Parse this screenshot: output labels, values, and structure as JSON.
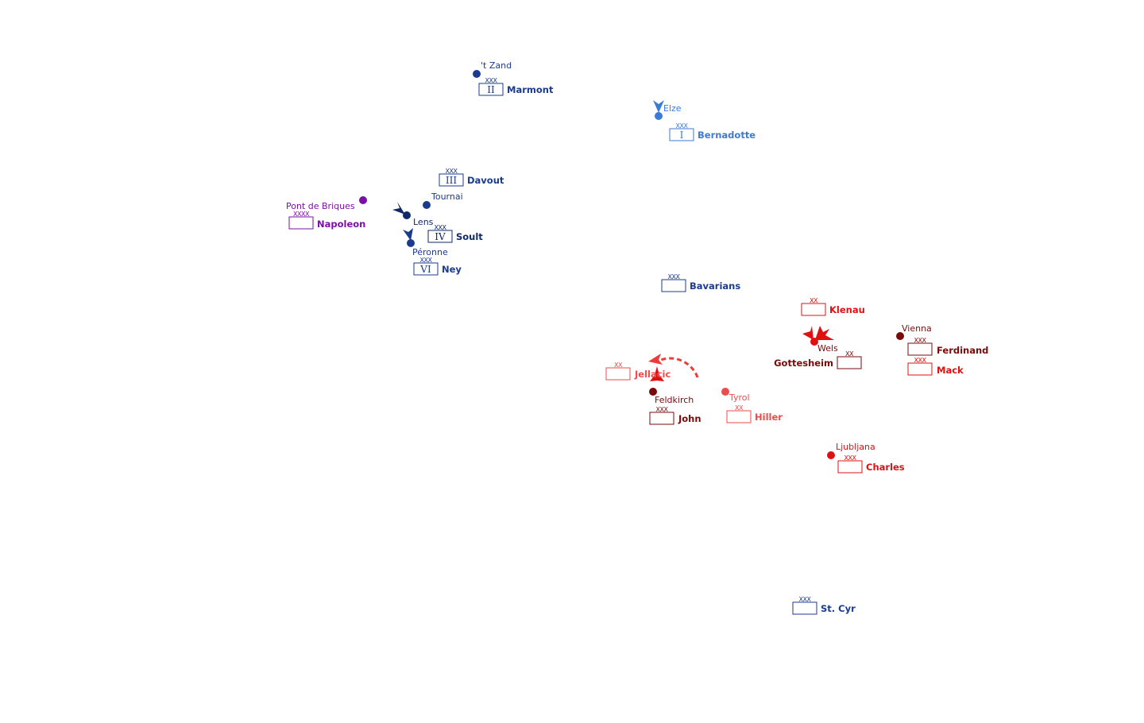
{
  "colors": {
    "french_dark": "#1b3b8f",
    "french_navy": "#0f2a66",
    "french_light": "#3a7bd5",
    "napoleon": "#7b0fa8",
    "austrian_red": "#e01010",
    "austrian_dark": "#7a0a0a",
    "austrian_light": "#ee4b4b"
  },
  "places": {
    "t_zand": "'t Zand",
    "elze": "Elze",
    "tournai": "Tournai",
    "pont_de_briques": "Pont de Briques",
    "lens": "Lens",
    "peronne": "Péronne",
    "vienna": "Vienna",
    "wels": "Wels",
    "feldkirch": "Feldkirch",
    "tyrol": "Tyrol",
    "ljubljana": "Ljubljana"
  },
  "units": {
    "marmont": {
      "name": "Marmont",
      "echelon": "XXX",
      "roman": "II"
    },
    "bernadotte": {
      "name": "Bernadotte",
      "echelon": "XXX",
      "roman": "I"
    },
    "davout": {
      "name": "Davout",
      "echelon": "XXX",
      "roman": "III"
    },
    "napoleon": {
      "name": "Napoleon",
      "echelon": "XXXX",
      "roman": ""
    },
    "soult": {
      "name": "Soult",
      "echelon": "XXX",
      "roman": "IV"
    },
    "ney": {
      "name": "Ney",
      "echelon": "XXX",
      "roman": "VI"
    },
    "bavarians": {
      "name": "Bavarians",
      "echelon": "XXX",
      "roman": ""
    },
    "klenau": {
      "name": "Klenau",
      "echelon": "XX",
      "roman": ""
    },
    "gottesheim": {
      "name": "Gottesheim",
      "echelon": "XX",
      "roman": ""
    },
    "ferdinand": {
      "name": "Ferdinand",
      "echelon": "XXX",
      "roman": ""
    },
    "mack": {
      "name": "Mack",
      "echelon": "XXX",
      "roman": ""
    },
    "jellacic": {
      "name": "Jellacic",
      "echelon": "XX",
      "roman": ""
    },
    "john": {
      "name": "John",
      "echelon": "XXX",
      "roman": ""
    },
    "hiller": {
      "name": "Hiller",
      "echelon": "XX",
      "roman": ""
    },
    "charles": {
      "name": "Charles",
      "echelon": "XXX",
      "roman": ""
    },
    "st_cyr": {
      "name": "St. Cyr",
      "echelon": "XXX",
      "roman": ""
    }
  }
}
